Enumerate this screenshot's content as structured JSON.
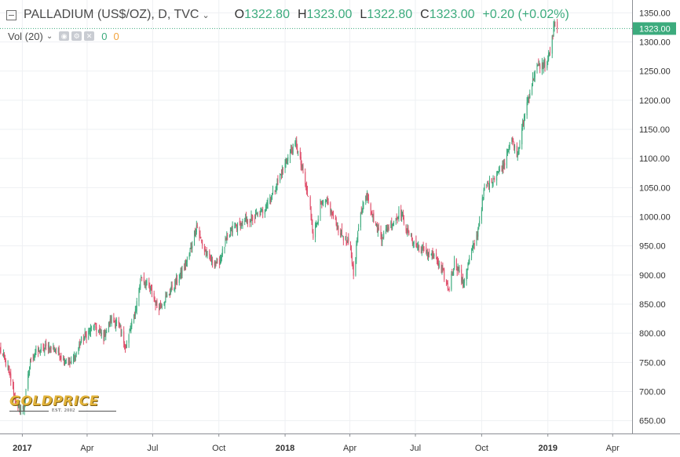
{
  "header": {
    "symbol_text": "PALLADIUM (US$/OZ), D, TVC",
    "open_label": "O",
    "open_value": "1322.80",
    "high_label": "H",
    "high_value": "1323.00",
    "low_label": "L",
    "low_value": "1322.80",
    "close_label": "C",
    "close_value": "1323.00",
    "change_text": "+0.20 (+0.02%)"
  },
  "volume": {
    "label": "Vol (20)",
    "value_up": "0",
    "value_down": "0"
  },
  "logo": {
    "brand": "GOLDPRICE",
    "tagline": "EST. 2002"
  },
  "colors": {
    "up": "#3cab7d",
    "down": "#e0506c",
    "last_price": "#3cab7d"
  },
  "chart_data": {
    "type": "candlestick",
    "title": "PALLADIUM (US$/OZ), D, TVC",
    "y_axis": {
      "side": "right",
      "ticks": [
        650,
        700,
        750,
        800,
        850,
        900,
        950,
        1000,
        1050,
        1100,
        1150,
        1200,
        1250,
        1300,
        1350
      ],
      "tick_labels": [
        "650.00",
        "700.00",
        "750.00",
        "800.00",
        "850.00",
        "900.00",
        "950.00",
        "1000.00",
        "1050.00",
        "1100.00",
        "1150.00",
        "1200.00",
        "1250.00",
        "1300.00",
        "1350.00"
      ],
      "range": [
        628,
        1372
      ]
    },
    "x_axis": {
      "type": "date",
      "range": [
        "2016-12-01",
        "2019-04-28"
      ],
      "ticks": [
        {
          "date": "2017-01-01",
          "label": "2017",
          "bold": true
        },
        {
          "date": "2017-04-01",
          "label": "Apr"
        },
        {
          "date": "2017-07-01",
          "label": "Jul"
        },
        {
          "date": "2017-10-01",
          "label": "Oct"
        },
        {
          "date": "2018-01-01",
          "label": "2018",
          "bold": true
        },
        {
          "date": "2018-04-01",
          "label": "Apr"
        },
        {
          "date": "2018-07-01",
          "label": "Jul"
        },
        {
          "date": "2018-10-01",
          "label": "Oct"
        },
        {
          "date": "2019-01-01",
          "label": "2019",
          "bold": true
        },
        {
          "date": "2019-04-01",
          "label": "Apr"
        }
      ]
    },
    "grid": true,
    "last_price": {
      "value": 1323.0,
      "label": "1323.00"
    },
    "close_path": [
      [
        "2016-12-01",
        772
      ],
      [
        "2016-12-12",
        740
      ],
      [
        "2016-12-26",
        668
      ],
      [
        "2017-01-03",
        672
      ],
      [
        "2017-01-13",
        760
      ],
      [
        "2017-01-25",
        770
      ],
      [
        "2017-02-06",
        778
      ],
      [
        "2017-02-20",
        768
      ],
      [
        "2017-03-01",
        752
      ],
      [
        "2017-03-10",
        748
      ],
      [
        "2017-03-25",
        790
      ],
      [
        "2017-04-10",
        812
      ],
      [
        "2017-04-24",
        795
      ],
      [
        "2017-05-05",
        825
      ],
      [
        "2017-05-15",
        812
      ],
      [
        "2017-05-25",
        775
      ],
      [
        "2017-06-08",
        845
      ],
      [
        "2017-06-15",
        898
      ],
      [
        "2017-06-30",
        870
      ],
      [
        "2017-07-08",
        842
      ],
      [
        "2017-07-20",
        862
      ],
      [
        "2017-08-05",
        892
      ],
      [
        "2017-08-20",
        930
      ],
      [
        "2017-08-31",
        985
      ],
      [
        "2017-09-10",
        945
      ],
      [
        "2017-09-20",
        925
      ],
      [
        "2017-10-01",
        920
      ],
      [
        "2017-10-10",
        955
      ],
      [
        "2017-10-20",
        980
      ],
      [
        "2017-11-05",
        990
      ],
      [
        "2017-11-20",
        1000
      ],
      [
        "2017-12-01",
        1010
      ],
      [
        "2017-12-15",
        1040
      ],
      [
        "2018-01-01",
        1090
      ],
      [
        "2018-01-10",
        1115
      ],
      [
        "2018-01-16",
        1125
      ],
      [
        "2018-01-25",
        1080
      ],
      [
        "2018-02-05",
        1015
      ],
      [
        "2018-02-09",
        968
      ],
      [
        "2018-02-20",
        1020
      ],
      [
        "2018-03-01",
        1025
      ],
      [
        "2018-03-15",
        980
      ],
      [
        "2018-04-01",
        950
      ],
      [
        "2018-04-06",
        905
      ],
      [
        "2018-04-16",
        1010
      ],
      [
        "2018-04-25",
        1040
      ],
      [
        "2018-05-05",
        990
      ],
      [
        "2018-05-15",
        965
      ],
      [
        "2018-05-30",
        990
      ],
      [
        "2018-06-10",
        1010
      ],
      [
        "2018-06-20",
        975
      ],
      [
        "2018-07-01",
        950
      ],
      [
        "2018-07-15",
        940
      ],
      [
        "2018-07-25",
        935
      ],
      [
        "2018-08-08",
        905
      ],
      [
        "2018-08-16",
        875
      ],
      [
        "2018-08-25",
        925
      ],
      [
        "2018-09-05",
        885
      ],
      [
        "2018-09-15",
        930
      ],
      [
        "2018-09-25",
        970
      ],
      [
        "2018-10-05",
        1050
      ],
      [
        "2018-10-20",
        1070
      ],
      [
        "2018-11-01",
        1090
      ],
      [
        "2018-11-10",
        1135
      ],
      [
        "2018-11-20",
        1105
      ],
      [
        "2018-12-01",
        1185
      ],
      [
        "2018-12-15",
        1255
      ],
      [
        "2018-12-31",
        1265
      ],
      [
        "2019-01-05",
        1290
      ],
      [
        "2019-01-10",
        1330
      ],
      [
        "2019-01-14",
        1323
      ]
    ]
  }
}
